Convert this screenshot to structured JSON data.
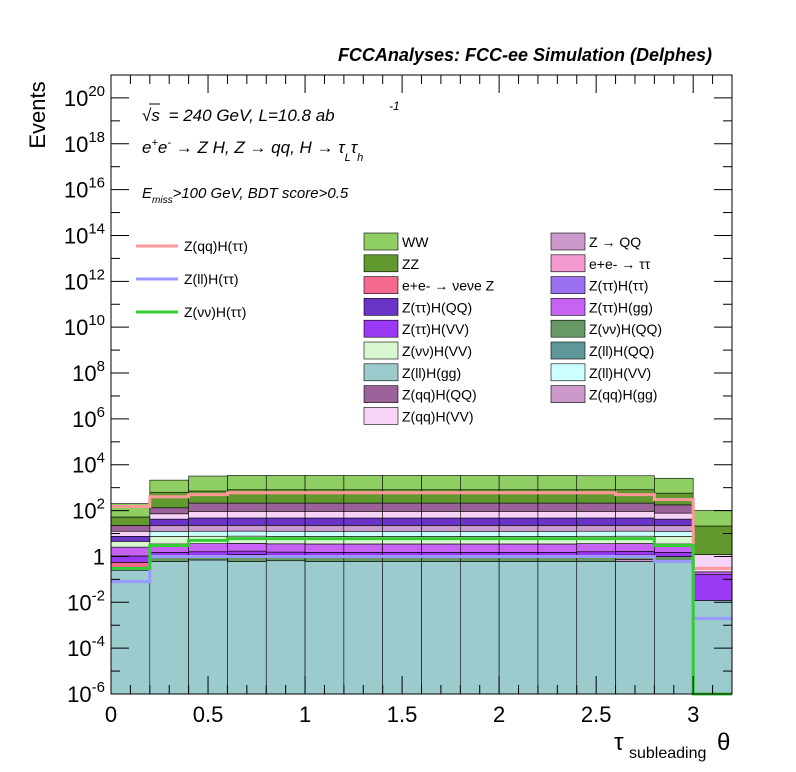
{
  "header": {
    "title": "FCCAnalyses: FCC-ee Simulation (Delphes)"
  },
  "annotations": {
    "line1_sqrt": "√s",
    "line1_rest": "= 240 GeV, L=10.8 ab",
    "line1_exp": "-1",
    "line2_base": "e",
    "line2_sup1": "+",
    "line2_e2": "e",
    "line2_sup2": "-",
    "line2_rest": " → Z H, Z  → qq, H  → τ",
    "line2_sub1": "L",
    "line2_tau2": "τ",
    "line2_sub2": "h",
    "line3_E": "E",
    "line3_sub": "miss",
    "line3_rest": ">100 GeV, BDT score>0.5"
  },
  "axes": {
    "ylabel": "Events",
    "xlabel_main": "τ",
    "xlabel_sub": "subleading",
    "xlabel_theta": "θ"
  },
  "colors": {
    "WW": "#8fce63",
    "ZZ": "#62992f",
    "nunuZ": "#f4698e",
    "ZtautauQQ": "#6a34c8",
    "ZtautauVV": "#9a38f3",
    "ZnunuVV": "#d8f7d1",
    "ZllGG": "#9bcbcc",
    "ZqqQQ": "#9a6299",
    "ZqqVV": "#f8d3f8",
    "ZQQ": "#cc99cc",
    "eetautau": "#f49ad0",
    "ZtautauTT": "#9970f0",
    "ZtautauGG": "#c763f3",
    "ZnunuQQ": "#669966",
    "ZllQQ": "#5e9898",
    "ZllVV": "#ccffff",
    "ZqqGG": "#cc99cc",
    "sig_qq": "#ff9999",
    "sig_ll": "#9999ff",
    "sig_nunu": "#33cc33"
  },
  "chart_data": {
    "type": "bar",
    "title": "FCCAnalyses: FCC-ee Simulation (Delphes)",
    "xlabel": "τ subleading θ",
    "ylabel": "Events",
    "xlim": [
      0,
      3.2
    ],
    "ylim": [
      1e-06,
      1e+21
    ],
    "yscale": "log",
    "x_ticks": [
      "0",
      "0.5",
      "1",
      "1.5",
      "2",
      "2.5",
      "3"
    ],
    "y_ticks": [
      "10^-6",
      "10^-4",
      "10^-2",
      "1",
      "10^2",
      "10^4",
      "10^6",
      "10^8",
      "10^10",
      "10^12",
      "10^14",
      "10^16",
      "10^18",
      "10^20"
    ],
    "bin_edges": [
      0,
      0.2,
      0.4,
      0.6,
      0.8,
      1.0,
      1.2,
      1.4,
      1.6,
      1.8,
      2.0,
      2.2,
      2.4,
      2.6,
      2.8,
      3.0,
      3.2
    ],
    "stack": [
      {
        "name": "Z(ll)H(gg)",
        "color_key": "ZllGG",
        "values": [
          0.25,
          0.6,
          0.7,
          0.6,
          0.65,
          0.6,
          0.6,
          0.6,
          0.6,
          0.6,
          0.6,
          0.6,
          0.6,
          0.6,
          0.6,
          0.012
        ]
      },
      {
        "name": "Z → QQ",
        "color_key": "ZQQ",
        "values": [
          0,
          0,
          0,
          0,
          0,
          0,
          0,
          0,
          0,
          0,
          0,
          0,
          0,
          0.15,
          0,
          0
        ]
      },
      {
        "name": "Z(νν)H(QQ)",
        "color_key": "ZnunuQQ",
        "values": [
          0,
          0.4,
          0.4,
          0.6,
          0.4,
          0.4,
          0.4,
          0.4,
          0.4,
          0.4,
          0.4,
          0.4,
          0.5,
          0.4,
          0.4,
          0
        ]
      },
      {
        "name": "e+e- → νeνe Z",
        "color_key": "nunuZ",
        "values": [
          0.3,
          0,
          0,
          0,
          0,
          0,
          0,
          0,
          0,
          0,
          0,
          0,
          0,
          0,
          0,
          0
        ]
      },
      {
        "name": "Z(ττ)H(VV)",
        "color_key": "ZtautauVV",
        "values": [
          0.5,
          0.5,
          0.5,
          0.5,
          0.5,
          0.5,
          0.5,
          0.5,
          0.5,
          0.5,
          0.5,
          0.5,
          0.5,
          0.5,
          0.5,
          0.15
        ]
      },
      {
        "name": "Z(ττ)H(gg)",
        "color_key": "ZtautauGG",
        "values": [
          1.5,
          2,
          2,
          2,
          2,
          2,
          2,
          2,
          2,
          2,
          2,
          2,
          2,
          2,
          2,
          0.05
        ]
      },
      {
        "name": "Z(νν)H(VV)",
        "color_key": "ZnunuVV",
        "values": [
          2,
          4,
          4,
          4,
          4,
          4,
          4,
          4,
          4,
          4,
          4,
          4,
          4,
          4,
          4,
          0
        ]
      },
      {
        "name": "Z(ll)H(VV)",
        "color_key": "ZllVV",
        "values": [
          0,
          5,
          5,
          5,
          5,
          5,
          5,
          5,
          5,
          5,
          5,
          5,
          5,
          5,
          5,
          0
        ]
      },
      {
        "name": "Z(qq)H(gg)",
        "color_key": "ZqqGG",
        "values": [
          0,
          10,
          10,
          10,
          10,
          10,
          10,
          10,
          10,
          10,
          10,
          10,
          10,
          10,
          10,
          0
        ]
      },
      {
        "name": "Z(ττ)H(QQ)",
        "color_key": "ZtautauQQ",
        "values": [
          3,
          20,
          25,
          25,
          25,
          25,
          25,
          25,
          25,
          25,
          25,
          25,
          25,
          25,
          20,
          0
        ]
      },
      {
        "name": "Z(qq)H(VV)",
        "color_key": "ZqqVV",
        "values": [
          5,
          30,
          45,
          45,
          45,
          45,
          45,
          45,
          45,
          45,
          45,
          45,
          45,
          45,
          35,
          1
        ]
      },
      {
        "name": "Z(qq)H(QQ)",
        "color_key": "ZqqQQ",
        "values": [
          10,
          60,
          120,
          120,
          120,
          120,
          120,
          120,
          120,
          120,
          120,
          120,
          120,
          120,
          100,
          0
        ]
      },
      {
        "name": "ZZ",
        "color_key": "ZZ",
        "values": [
          30,
          500,
          500,
          600,
          600,
          600,
          600,
          600,
          600,
          600,
          600,
          600,
          600,
          600,
          400,
          20
        ]
      },
      {
        "name": "WW",
        "color_key": "WW",
        "values": [
          150,
          1500,
          2500,
          2600,
          2600,
          2600,
          2600,
          2600,
          2600,
          2600,
          2600,
          2600,
          2500,
          2500,
          2000,
          80
        ]
      }
    ],
    "signals": [
      {
        "name": "Z(qq)H(ττ)",
        "color_key": "sig_qq",
        "values": [
          150,
          400,
          500,
          600,
          600,
          600,
          600,
          600,
          600,
          600,
          600,
          600,
          600,
          500,
          300,
          0.3
        ]
      },
      {
        "name": "Z(ll)H(ττ)",
        "color_key": "sig_ll",
        "values": [
          0.08,
          1,
          1,
          1,
          1,
          1,
          1,
          1,
          1,
          1,
          1,
          1,
          1,
          1,
          0.6,
          0.002
        ]
      },
      {
        "name": "Z(νν)H(ττ)",
        "color_key": "sig_nunu",
        "values": [
          0.3,
          3,
          5,
          6,
          6,
          6,
          6,
          6,
          6,
          6,
          6,
          6,
          6,
          6,
          3,
          1e-06
        ]
      }
    ]
  },
  "legend_signals": [
    "Z(qq)H(ττ)",
    "Z(ll)H(ττ)",
    "Z(νν)H(ττ)"
  ],
  "legend_stack": [
    {
      "label": "WW",
      "key": "WW"
    },
    {
      "label": "Z → QQ",
      "key": "ZQQ"
    },
    {
      "label": "ZZ",
      "key": "ZZ"
    },
    {
      "label": "e+e- → ττ",
      "key": "eetautau"
    },
    {
      "label": "e+e- → νeνe Z",
      "key": "nunuZ"
    },
    {
      "label": "Z(ττ)H(ττ)",
      "key": "ZtautauTT"
    },
    {
      "label": "Z(ττ)H(QQ)",
      "key": "ZtautauQQ"
    },
    {
      "label": "Z(ττ)H(gg)",
      "key": "ZtautauGG"
    },
    {
      "label": "Z(ττ)H(VV)",
      "key": "ZtautauVV"
    },
    {
      "label": "Z(νν)H(QQ)",
      "key": "ZnunuQQ"
    },
    {
      "label": "Z(νν)H(VV)",
      "key": "ZnunuVV"
    },
    {
      "label": "Z(ll)H(QQ)",
      "key": "ZllQQ"
    },
    {
      "label": "Z(ll)H(gg)",
      "key": "ZllGG"
    },
    {
      "label": "Z(ll)H(VV)",
      "key": "ZllVV"
    },
    {
      "label": "Z(qq)H(QQ)",
      "key": "ZqqQQ"
    },
    {
      "label": "Z(qq)H(gg)",
      "key": "ZqqGG"
    },
    {
      "label": "Z(qq)H(VV)",
      "key": "ZqqVV"
    }
  ]
}
